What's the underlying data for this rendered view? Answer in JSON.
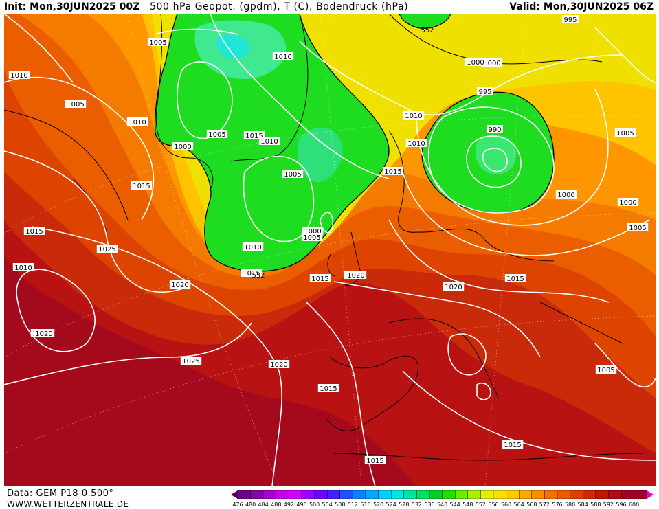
{
  "header": {
    "init": "Init: Mon,30JUN2025 00Z",
    "title": "500 hPa Geopot. (gpdm), T (C), Bodendruck (hPa)",
    "valid": "Valid: Mon,30JUN2025 06Z"
  },
  "footer": {
    "source": "Data: GEM P18 0.500°",
    "site": "WWW.WETTERZENTRALE.DE"
  },
  "legend": {
    "ticks": [
      "476",
      "480",
      "484",
      "488",
      "492",
      "496",
      "500",
      "504",
      "508",
      "512",
      "516",
      "520",
      "524",
      "528",
      "532",
      "536",
      "540",
      "544",
      "548",
      "552",
      "556",
      "560",
      "564",
      "568",
      "572",
      "576",
      "580",
      "584",
      "588",
      "592",
      "596",
      "600"
    ],
    "colors": [
      "#4a0066",
      "#6a0088",
      "#8a00a8",
      "#aa00cc",
      "#c800e6",
      "#d200ff",
      "#a000ff",
      "#7000ff",
      "#4020ff",
      "#2050ff",
      "#1080ff",
      "#00a8ff",
      "#00d0ff",
      "#00e8e0",
      "#00e6a0",
      "#00e060",
      "#00d020",
      "#20e000",
      "#60f000",
      "#a8f000",
      "#e0f000",
      "#f8e000",
      "#ffc800",
      "#ffa800",
      "#ff8c00",
      "#f57000",
      "#eb5a00",
      "#dc4000",
      "#cd2a00",
      "#be1400",
      "#b00a14",
      "#a00028",
      "#e000e0"
    ]
  },
  "isobar_labels": [
    {
      "text": "1005"
    },
    {
      "text": "1010"
    },
    {
      "text": "1005"
    },
    {
      "text": "1010"
    },
    {
      "text": "1000"
    },
    {
      "text": "1005"
    },
    {
      "text": "1015"
    },
    {
      "text": "1010"
    },
    {
      "text": "1005"
    },
    {
      "text": "1000"
    },
    {
      "text": "1005"
    },
    {
      "text": "1010"
    },
    {
      "text": "1015"
    },
    {
      "text": "1010"
    },
    {
      "text": "1015"
    },
    {
      "text": "1020"
    },
    {
      "text": "1015"
    },
    {
      "text": "1020"
    },
    {
      "text": "1025"
    },
    {
      "text": "1015"
    },
    {
      "text": "1010"
    },
    {
      "text": "1015"
    },
    {
      "text": "1010"
    },
    {
      "text": "1000"
    },
    {
      "text": "995"
    },
    {
      "text": "990"
    },
    {
      "text": "1000"
    },
    {
      "text": "1005"
    },
    {
      "text": "1000"
    },
    {
      "text": "1005"
    },
    {
      "text": "1000"
    },
    {
      "text": "1010"
    },
    {
      "text": "1015"
    },
    {
      "text": "1020"
    },
    {
      "text": "1015"
    },
    {
      "text": "1020"
    },
    {
      "text": "1025"
    },
    {
      "text": "1020"
    },
    {
      "text": "1020"
    },
    {
      "text": "1015"
    },
    {
      "text": "1005"
    },
    {
      "text": "1015"
    },
    {
      "text": "1015"
    },
    {
      "text": "995"
    }
  ],
  "height_labels": [
    {
      "text": "552"
    },
    {
      "text": "552"
    }
  ]
}
